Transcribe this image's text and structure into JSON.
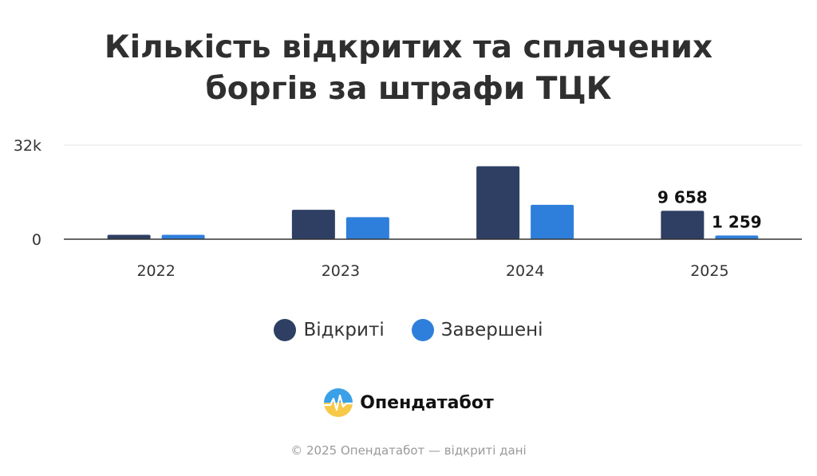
{
  "title_lines": [
    "Кількість відкритих та сплачених",
    "боргів за штрафи ТЦК"
  ],
  "chart_data": {
    "type": "bar",
    "categories": [
      "2022",
      "2023",
      "2024",
      "2025"
    ],
    "series": [
      {
        "name": "Відкриті",
        "color": "#2e3f63",
        "values": [
          1500,
          10000,
          24800,
          9658
        ],
        "labels": [
          "",
          "",
          "",
          "9 658"
        ]
      },
      {
        "name": "Завершені",
        "color": "#2e7fdb",
        "values": [
          1500,
          7500,
          11700,
          1259
        ],
        "labels": [
          "",
          "",
          "",
          "1 259"
        ]
      }
    ],
    "ylim": [
      0,
      32000
    ],
    "yticks": [
      0,
      32000
    ],
    "ytick_labels": [
      "0",
      "32k"
    ],
    "grid": true,
    "legend": "bottom-center"
  },
  "brand": {
    "name": "Опендатабот",
    "icon": "sun-logo-icon"
  },
  "footer": "© 2025 Опендатабот — відкриті дані"
}
